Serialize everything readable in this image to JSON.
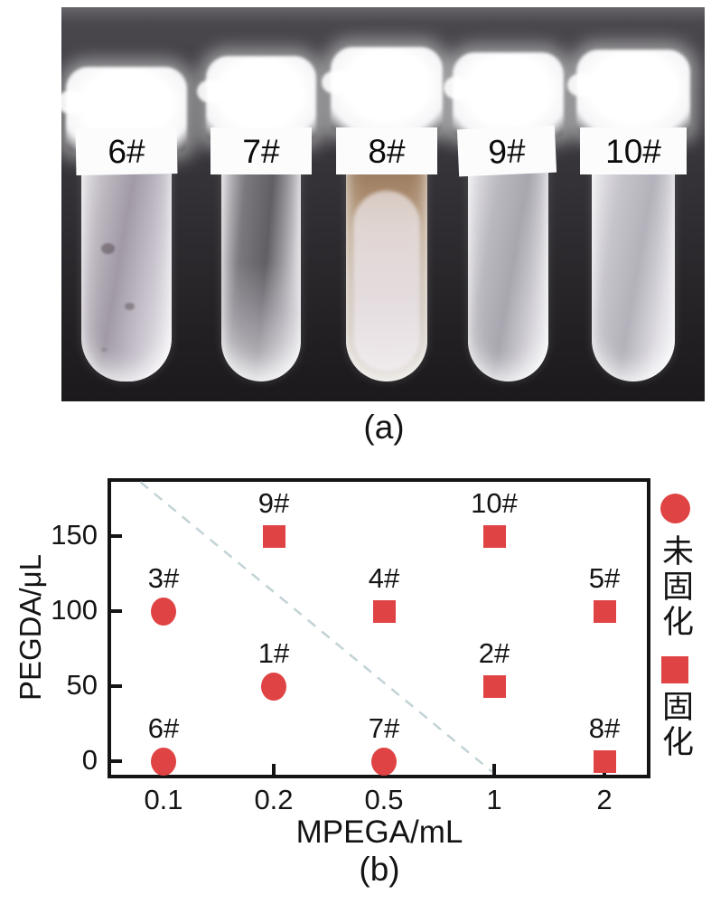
{
  "panel_a": {
    "caption": "(a)",
    "tubes": [
      {
        "label": "6#"
      },
      {
        "label": "7#"
      },
      {
        "label": "8#"
      },
      {
        "label": "9#"
      },
      {
        "label": "10#"
      }
    ]
  },
  "panel_b": {
    "caption": "(b)"
  },
  "chart_data": {
    "type": "scatter",
    "title": "",
    "xlabel": "MPEGA/mL",
    "ylabel": "PEGDA/μL",
    "x_categories": [
      "0.1",
      "0.2",
      "0.5",
      "1",
      "2"
    ],
    "y_ticks": [
      "0",
      "50",
      "100",
      "150"
    ],
    "ylim": [
      -13,
      185
    ],
    "grid": false,
    "legend_position": "right-outside",
    "marker_color": "#e04343",
    "text_color": "#141414",
    "series": [
      {
        "name": "未固化",
        "marker": "circle",
        "points": [
          {
            "label": "1#",
            "x": "0.2",
            "y": 50
          },
          {
            "label": "3#",
            "x": "0.1",
            "y": 100
          },
          {
            "label": "6#",
            "x": "0.1",
            "y": 0
          },
          {
            "label": "7#",
            "x": "0.5",
            "y": 0
          }
        ]
      },
      {
        "name": "固化",
        "marker": "square",
        "points": [
          {
            "label": "2#",
            "x": "1",
            "y": 50
          },
          {
            "label": "4#",
            "x": "0.5",
            "y": 100
          },
          {
            "label": "5#",
            "x": "2",
            "y": 100
          },
          {
            "label": "8#",
            "x": "2",
            "y": 0
          },
          {
            "label": "9#",
            "x": "0.2",
            "y": 150
          },
          {
            "label": "10#",
            "x": "1",
            "y": 150
          }
        ]
      }
    ],
    "boundary_line": {
      "style": "dashed",
      "color": "#c2d3d6",
      "x1_idx": -0.21,
      "y1": 186,
      "x2_idx": 2.98,
      "y2": -7
    }
  }
}
